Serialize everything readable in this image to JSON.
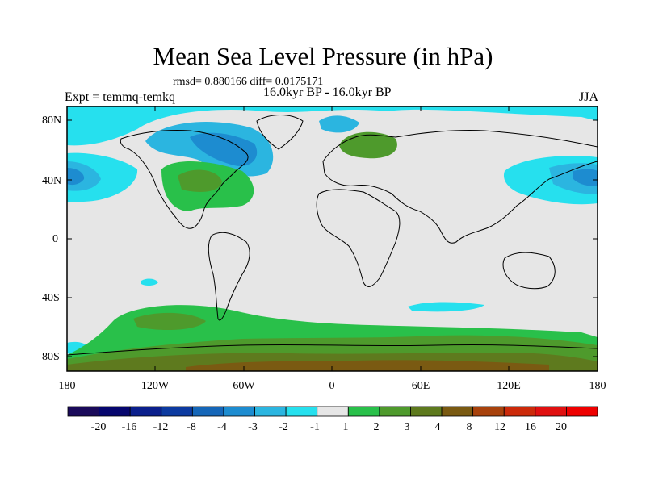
{
  "title": "Mean Sea Level Pressure (in hPa)",
  "stats_line": "rmsd= 0.880166 diff= 0.0175171",
  "period_line": "16.0kyr BP - 16.0kyr BP",
  "experiment_label": "Expt = temmq-temkq",
  "season_label": "JJA",
  "map": {
    "lat_ticks": [
      "80N",
      "40N",
      "0",
      "40S",
      "80S"
    ],
    "lon_ticks": [
      "180",
      "120W",
      "60W",
      "0",
      "60E",
      "120E",
      "180"
    ],
    "background_color": "#e6e6e6"
  },
  "colorbar": {
    "labels": [
      "-20",
      "-16",
      "-12",
      "-8",
      "-4",
      "-3",
      "-2",
      "-1",
      "1",
      "2",
      "3",
      "4",
      "8",
      "12",
      "16",
      "20"
    ],
    "colors": [
      "#1a0a5a",
      "#06066e",
      "#0b1f8c",
      "#0c3aa0",
      "#1566b8",
      "#1d8cd0",
      "#2bb5e0",
      "#26e0ee",
      "#e6e6e6",
      "#29c04a",
      "#4e9a2c",
      "#5e7a1e",
      "#7a5a12",
      "#a8420c",
      "#cc2a0a",
      "#e01010",
      "#ee0000"
    ]
  }
}
